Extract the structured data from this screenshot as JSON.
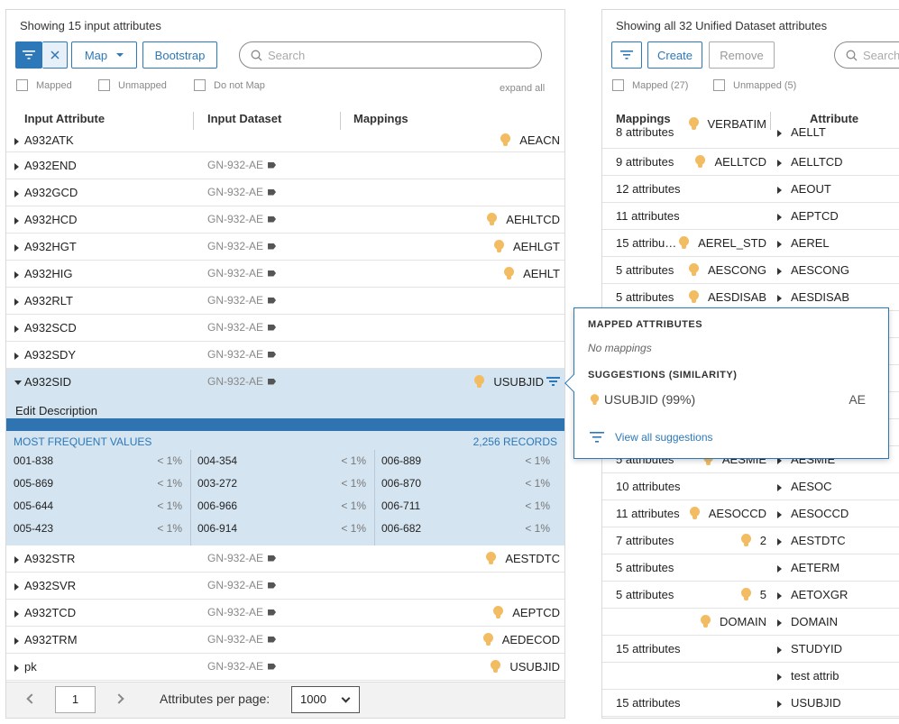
{
  "left": {
    "showing": "Showing 15 input attributes",
    "toolbar": {
      "map_label": "Map",
      "bootstrap_label": "Bootstrap",
      "search_placeholder": "Search"
    },
    "checkboxes": [
      "Mapped",
      "Unmapped",
      "Do not Map"
    ],
    "expand_all": "expand all",
    "headers": {
      "input_attribute": "Input Attribute",
      "input_dataset": "Input Dataset",
      "mappings": "Mappings"
    },
    "rows_top": [
      {
        "name": "A932ATK",
        "dataset": "",
        "mapping": "AEACN"
      },
      {
        "name": "A932END",
        "dataset": "GN-932-AE",
        "mapping": ""
      },
      {
        "name": "A932GCD",
        "dataset": "GN-932-AE",
        "mapping": ""
      },
      {
        "name": "A932HCD",
        "dataset": "GN-932-AE",
        "mapping": "AEHLTCD"
      },
      {
        "name": "A932HGT",
        "dataset": "GN-932-AE",
        "mapping": "AEHLGT"
      },
      {
        "name": "A932HIG",
        "dataset": "GN-932-AE",
        "mapping": "AEHLT"
      },
      {
        "name": "A932RLT",
        "dataset": "GN-932-AE",
        "mapping": ""
      },
      {
        "name": "A932SCD",
        "dataset": "GN-932-AE",
        "mapping": ""
      },
      {
        "name": "A932SDY",
        "dataset": "GN-932-AE",
        "mapping": ""
      },
      {
        "name": "A932SID",
        "dataset": "GN-932-AE",
        "mapping": "USUBJID"
      }
    ],
    "expanded": {
      "edit_description": "Edit Description",
      "most_frequent": "MOST FREQUENT VALUES",
      "records": "2,256 RECORDS",
      "values": [
        [
          {
            "v": "001-838",
            "p": "< 1%"
          },
          {
            "v": "005-869",
            "p": "< 1%"
          },
          {
            "v": "005-644",
            "p": "< 1%"
          },
          {
            "v": "005-423",
            "p": "< 1%"
          }
        ],
        [
          {
            "v": "004-354",
            "p": "< 1%"
          },
          {
            "v": "003-272",
            "p": "< 1%"
          },
          {
            "v": "006-966",
            "p": "< 1%"
          },
          {
            "v": "006-914",
            "p": "< 1%"
          }
        ],
        [
          {
            "v": "006-889",
            "p": "< 1%"
          },
          {
            "v": "006-870",
            "p": "< 1%"
          },
          {
            "v": "006-711",
            "p": "< 1%"
          },
          {
            "v": "006-682",
            "p": "< 1%"
          }
        ]
      ]
    },
    "rows_bottom": [
      {
        "name": "A932STR",
        "dataset": "GN-932-AE",
        "mapping": "AESTDTC"
      },
      {
        "name": "A932SVR",
        "dataset": "GN-932-AE",
        "mapping": ""
      },
      {
        "name": "A932TCD",
        "dataset": "GN-932-AE",
        "mapping": "AEPTCD"
      },
      {
        "name": "A932TRM",
        "dataset": "GN-932-AE",
        "mapping": "AEDECOD"
      },
      {
        "name": "pk",
        "dataset": "GN-932-AE",
        "mapping": "USUBJID"
      }
    ],
    "footer": {
      "page": "1",
      "per_page_label": "Attributes per page:",
      "per_page_value": "1000"
    }
  },
  "right": {
    "showing": "Showing all 32 Unified Dataset attributes",
    "toolbar": {
      "create_label": "Create",
      "remove_label": "Remove",
      "search_placeholder": "Search"
    },
    "checkboxes": [
      "Mapped (27)",
      "Unmapped (5)"
    ],
    "headers": {
      "mappings": "Mappings",
      "attribute": "Attribute"
    },
    "rows": [
      {
        "count": "8 attributes",
        "suggestion": "VERBATIM",
        "attr": "AELLT"
      },
      {
        "count": "9 attributes",
        "suggestion": "AELLTCD",
        "attr": "AELLTCD"
      },
      {
        "count": "12 attributes",
        "suggestion": "",
        "attr": "AEOUT"
      },
      {
        "count": "11 attributes",
        "suggestion": "",
        "attr": "AEPTCD"
      },
      {
        "count": "15 attribu…",
        "suggestion": "AEREL_STD",
        "attr": "AEREL"
      },
      {
        "count": "5 attributes",
        "suggestion": "AESCONG",
        "attr": "AESCONG"
      },
      {
        "count": "5 attributes",
        "suggestion": "AESDISAB",
        "attr": "AESDISAB"
      },
      {
        "count": "",
        "suggestion": "",
        "attr": ""
      },
      {
        "count": "",
        "suggestion": "",
        "attr": ""
      },
      {
        "count": "",
        "suggestion": "",
        "attr": ""
      },
      {
        "count": "",
        "suggestion": "",
        "attr": ""
      },
      {
        "count": "",
        "suggestion": "",
        "attr": ""
      },
      {
        "count": "5 attributes",
        "suggestion": "AESMIE",
        "attr": "AESMIE"
      },
      {
        "count": "10 attributes",
        "suggestion": "",
        "attr": "AESOC"
      },
      {
        "count": "11 attributes",
        "suggestion": "AESOCCD",
        "attr": "AESOCCD"
      },
      {
        "count": "7 attributes",
        "suggestion": "2",
        "attr": "AESTDTC"
      },
      {
        "count": "5 attributes",
        "suggestion": "",
        "attr": "AETERM"
      },
      {
        "count": "5 attributes",
        "suggestion": "5",
        "attr": "AETOXGR"
      },
      {
        "count": "",
        "suggestion": "DOMAIN",
        "attr": "DOMAIN"
      },
      {
        "count": "15 attributes",
        "suggestion": "",
        "attr": "STUDYID"
      },
      {
        "count": "",
        "suggestion": "",
        "attr": "test attrib"
      },
      {
        "count": "15 attributes",
        "suggestion": "",
        "attr": "USUBJID"
      }
    ]
  },
  "popup": {
    "mapped_title": "MAPPED ATTRIBUTES",
    "no_mappings": "No mappings",
    "suggestions_title": "SUGGESTIONS (SIMILARITY)",
    "suggestion": "USUBJID (99%)",
    "suggestion_right": "AE",
    "view_all": "View all suggestions"
  },
  "colors": {
    "accent": "#2c78b8",
    "bulb": "#f2bc63",
    "selected_row": "#d4e4f0",
    "blue_bar": "#2f73b0"
  }
}
